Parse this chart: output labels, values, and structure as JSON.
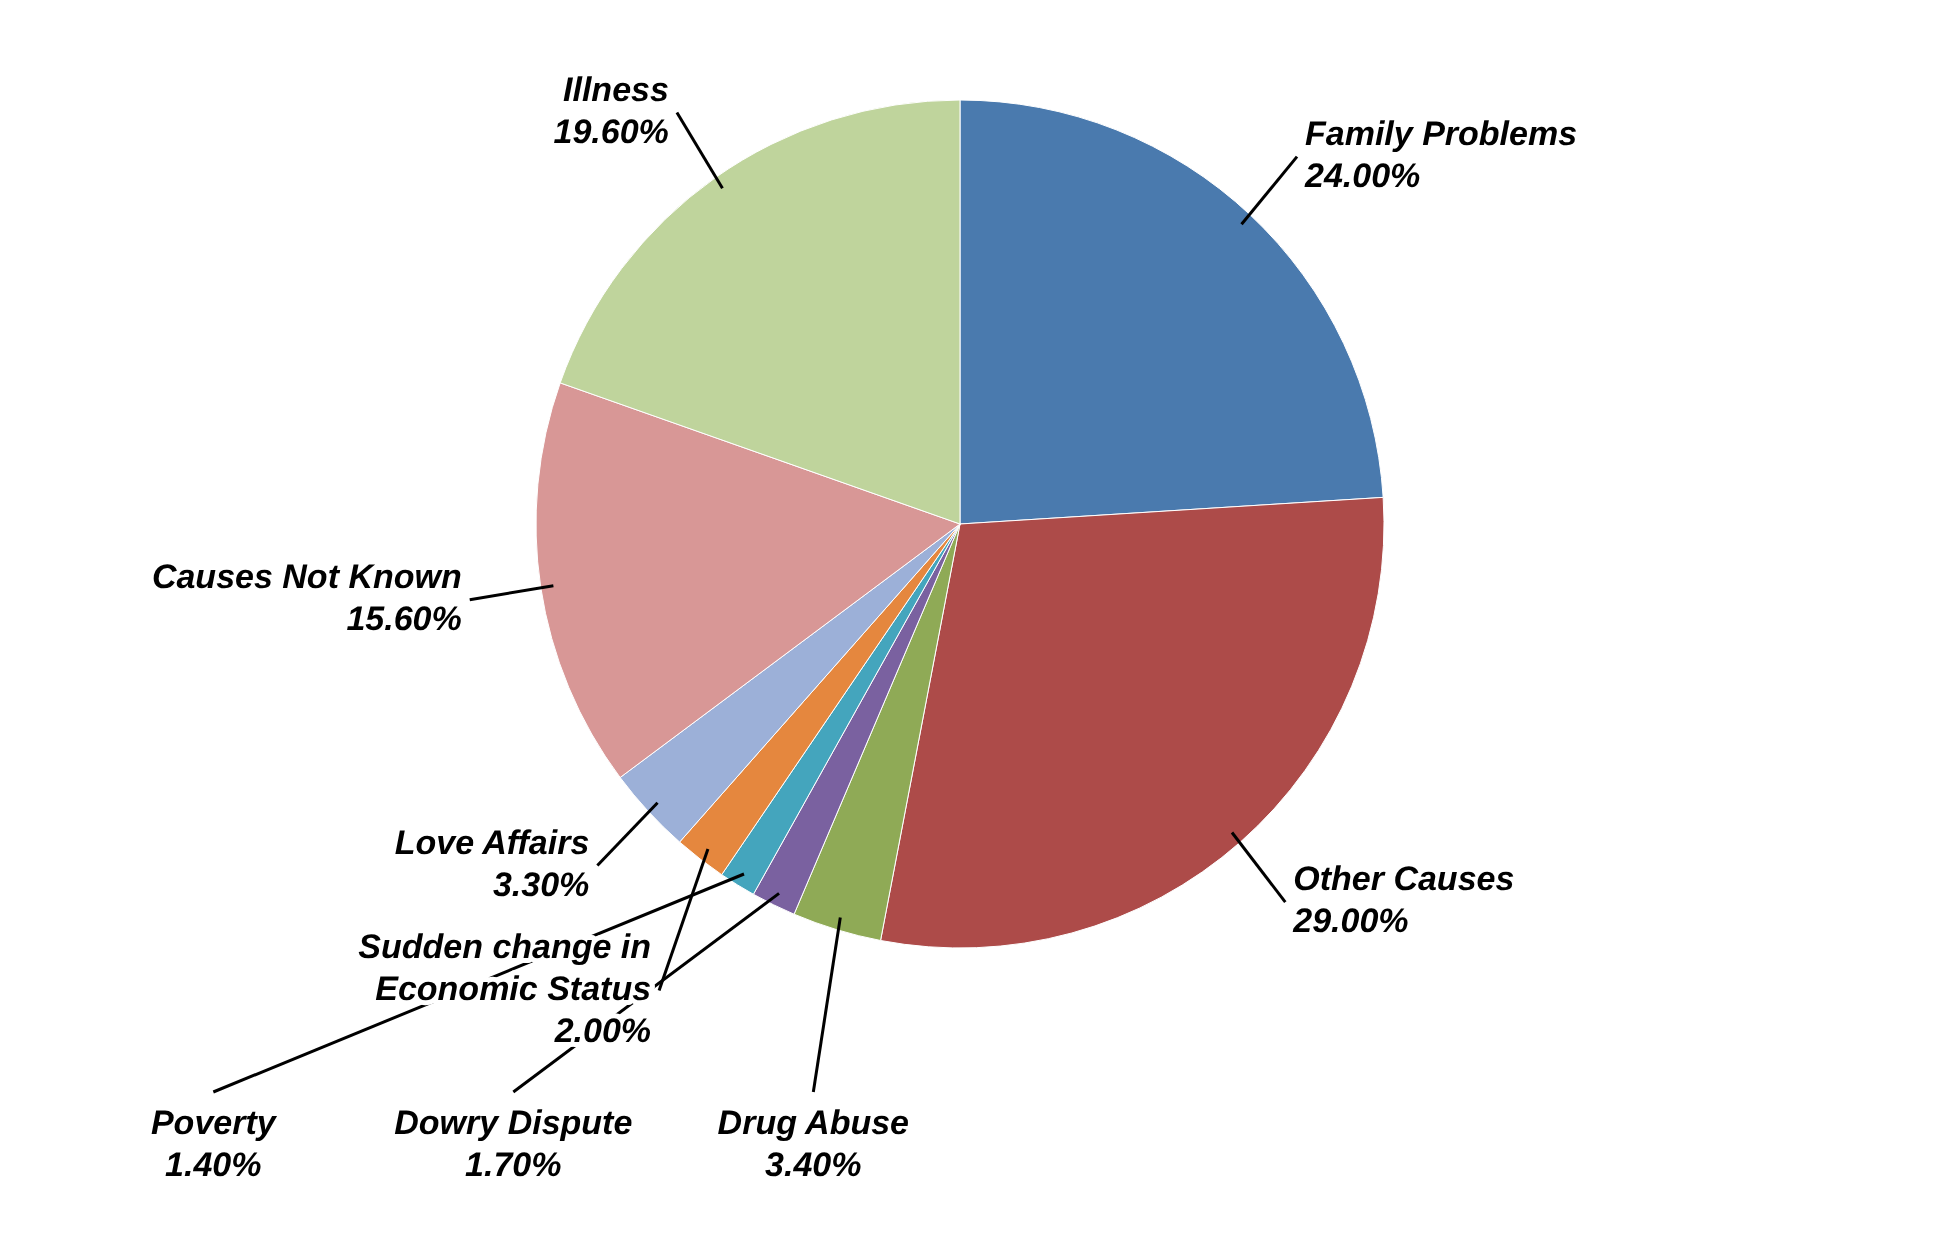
{
  "chart_data": {
    "type": "pie",
    "categories": [
      "Family Problems",
      "Other Causes",
      "Drug Abuse",
      "Dowry Dispute",
      "Poverty",
      "Sudden change in Economic Status",
      "Love Affairs",
      "Causes Not Known",
      "Illness"
    ],
    "values": [
      24.0,
      29.0,
      3.4,
      1.7,
      1.4,
      2.0,
      3.3,
      15.6,
      19.6
    ],
    "value_labels": [
      "24.00%",
      "29.00%",
      "3.40%",
      "1.70%",
      "1.40%",
      "2.00%",
      "3.30%",
      "15.60%",
      "19.60%"
    ],
    "colors": [
      "#4a7aae",
      "#ad4b49",
      "#8faa56",
      "#7a61a0",
      "#44a5bd",
      "#e5873e",
      "#9cb0d8",
      "#d89796",
      "#bfd49c"
    ]
  }
}
